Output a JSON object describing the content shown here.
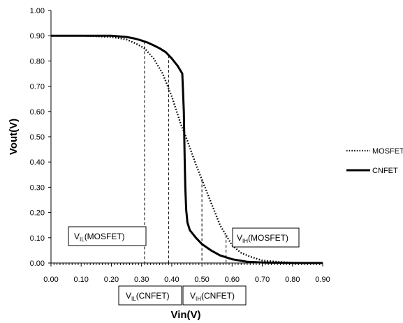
{
  "chart_data": {
    "type": "line",
    "title": "",
    "xlabel": "Vin(V)",
    "ylabel": "Vout(V)",
    "xlim": [
      0,
      0.9
    ],
    "ylim": [
      0,
      1.0
    ],
    "x_ticks": [
      "0.00",
      "0.10",
      "0.20",
      "0.30",
      "0.40",
      "0.50",
      "0.60",
      "0.70",
      "0.80",
      "0.90"
    ],
    "y_ticks": [
      "0.00",
      "0.10",
      "0.20",
      "0.30",
      "0.40",
      "0.50",
      "0.60",
      "0.70",
      "0.80",
      "0.90",
      "1.00"
    ],
    "grid": false,
    "legend_position": "right",
    "series": [
      {
        "name": "MOSFET",
        "style": "dotted",
        "color": "#000000",
        "x": [
          0.0,
          0.1,
          0.2,
          0.25,
          0.28,
          0.31,
          0.34,
          0.37,
          0.4,
          0.43,
          0.45,
          0.48,
          0.5,
          0.53,
          0.56,
          0.58,
          0.6,
          0.63,
          0.66,
          0.7,
          0.75,
          0.8,
          0.9
        ],
        "y": [
          0.9,
          0.9,
          0.895,
          0.885,
          0.87,
          0.85,
          0.81,
          0.75,
          0.66,
          0.55,
          0.49,
          0.39,
          0.33,
          0.24,
          0.15,
          0.11,
          0.07,
          0.04,
          0.025,
          0.01,
          0.005,
          0.001,
          0.0
        ]
      },
      {
        "name": "CNFET",
        "style": "solid",
        "color": "#000000",
        "x": [
          0.0,
          0.1,
          0.2,
          0.25,
          0.28,
          0.3,
          0.32,
          0.34,
          0.36,
          0.38,
          0.4,
          0.42,
          0.435,
          0.44,
          0.443,
          0.445,
          0.448,
          0.452,
          0.46,
          0.48,
          0.5,
          0.53,
          0.56,
          0.6,
          0.65,
          0.7,
          0.8,
          0.9
        ],
        "y": [
          0.9,
          0.9,
          0.9,
          0.895,
          0.888,
          0.881,
          0.873,
          0.862,
          0.85,
          0.835,
          0.81,
          0.78,
          0.75,
          0.6,
          0.4,
          0.3,
          0.21,
          0.16,
          0.13,
          0.1,
          0.075,
          0.05,
          0.03,
          0.015,
          0.005,
          0.002,
          0.0,
          0.0
        ]
      }
    ],
    "annotations": {
      "vlines": [
        0.31,
        0.39,
        0.5,
        0.58
      ],
      "labels": [
        {
          "main": "V",
          "sub": "IL",
          "rest": "(MOSFET)"
        },
        {
          "main": "V",
          "sub": "IH",
          "rest": "(MOSFET)"
        },
        {
          "main": "V",
          "sub": "IL",
          "rest": "(CNFET)"
        },
        {
          "main": "V",
          "sub": "IH",
          "rest": "(CNFET)"
        }
      ]
    }
  }
}
